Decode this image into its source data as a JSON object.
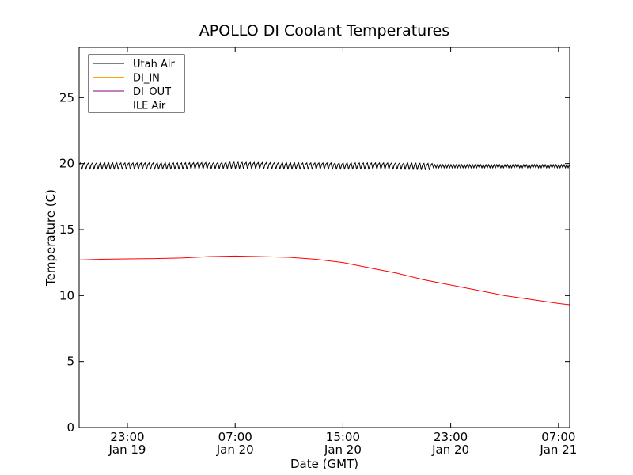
{
  "chart_data": {
    "type": "line",
    "title": "APOLLO DI Coolant Temperatures",
    "xlabel": "Date (GMT)",
    "ylabel": "Temperature (C)",
    "x_range": [
      "2013-01-19T19:25",
      "2013-01-21T07:50"
    ],
    "ylim": [
      0,
      28.8
    ],
    "y_ticks": [
      0,
      5,
      10,
      15,
      20,
      25
    ],
    "y_tick_labels": [
      "0",
      "5",
      "10",
      "15",
      "20",
      "25"
    ],
    "x_ticks": [
      {
        "x": "2013-01-19T23:00",
        "time": "23:00",
        "date": "Jan 19"
      },
      {
        "x": "2013-01-20T07:00",
        "time": "07:00",
        "date": "Jan 20"
      },
      {
        "x": "2013-01-20T15:00",
        "time": "15:00",
        "date": "Jan 20"
      },
      {
        "x": "2013-01-20T23:00",
        "time": "23:00",
        "date": "Jan 20"
      },
      {
        "x": "2013-01-21T07:00",
        "time": "07:00",
        "date": "Jan 21"
      }
    ],
    "grid": false,
    "legend_position": "top-left",
    "series": [
      {
        "name": "Utah Air",
        "color": "#000000",
        "oscillating": true,
        "values": [
          [
            "2013-01-19T19:25",
            19.85
          ],
          [
            "2013-01-19T23:00",
            19.85
          ],
          [
            "2013-01-20T03:00",
            19.85
          ],
          [
            "2013-01-20T07:00",
            19.9
          ],
          [
            "2013-01-20T11:00",
            19.85
          ],
          [
            "2013-01-20T15:00",
            19.85
          ],
          [
            "2013-01-20T19:00",
            19.85
          ],
          [
            "2013-01-20T21:40",
            19.8
          ],
          [
            "2013-01-20T23:00",
            19.8
          ],
          [
            "2013-01-21T03:00",
            19.8
          ],
          [
            "2013-01-21T07:50",
            19.8
          ]
        ],
        "band": [
          [
            "2013-01-19T19:25",
            0.6
          ],
          [
            "2013-01-20T21:40",
            0.6
          ],
          [
            "2013-01-20T21:45",
            0.8
          ],
          [
            "2013-01-21T07:50",
            0.8
          ]
        ]
      },
      {
        "name": "DI_IN",
        "color": "#ffa500",
        "values": []
      },
      {
        "name": "DI_OUT",
        "color": "#800080",
        "values": []
      },
      {
        "name": "ILE Air",
        "color": "#ff0000",
        "values": [
          [
            "2013-01-19T19:25",
            12.7
          ],
          [
            "2013-01-19T21:00",
            12.75
          ],
          [
            "2013-01-19T23:00",
            12.78
          ],
          [
            "2013-01-20T01:00",
            12.8
          ],
          [
            "2013-01-20T03:00",
            12.85
          ],
          [
            "2013-01-20T05:00",
            12.95
          ],
          [
            "2013-01-20T07:00",
            13.0
          ],
          [
            "2013-01-20T09:00",
            12.95
          ],
          [
            "2013-01-20T11:00",
            12.9
          ],
          [
            "2013-01-20T13:00",
            12.75
          ],
          [
            "2013-01-20T15:00",
            12.5
          ],
          [
            "2013-01-20T17:00",
            12.1
          ],
          [
            "2013-01-20T19:00",
            11.7
          ],
          [
            "2013-01-20T21:00",
            11.2
          ],
          [
            "2013-01-20T23:00",
            10.8
          ],
          [
            "2013-01-21T01:00",
            10.4
          ],
          [
            "2013-01-21T03:00",
            10.0
          ],
          [
            "2013-01-21T05:00",
            9.7
          ],
          [
            "2013-01-21T07:00",
            9.4
          ],
          [
            "2013-01-21T07:50",
            9.3
          ]
        ]
      }
    ]
  }
}
